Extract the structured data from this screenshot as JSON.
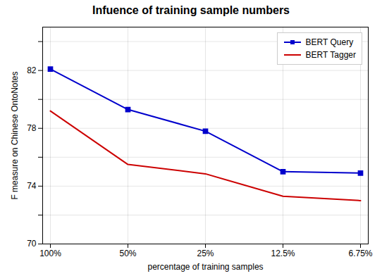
{
  "chart_data": {
    "type": "line",
    "title": "Infuence of training sample numbers",
    "xlabel": "percentage of training samples",
    "ylabel": "F measure on Chinese OntoNotes",
    "categories": [
      "100%",
      "50%",
      "25%",
      "12.5%",
      "6.75%"
    ],
    "series": [
      {
        "name": "BERT Query",
        "color": "#0000cc",
        "marker": "square",
        "values": [
          82.1,
          79.3,
          77.8,
          75.0,
          74.9
        ]
      },
      {
        "name": "BERT Tagger",
        "color": "#cc0000",
        "marker": "none",
        "values": [
          79.2,
          75.5,
          74.85,
          73.3,
          73.0
        ]
      }
    ],
    "ylim": [
      70,
      85
    ],
    "yticks": [
      70,
      {
        "value": 72,
        "label": ""
      },
      74,
      {
        "value": 76,
        "label": ""
      },
      78,
      {
        "value": 80,
        "label": ""
      },
      82,
      {
        "value": 84,
        "label": ""
      }
    ],
    "grid": true,
    "legend": "upper right"
  }
}
